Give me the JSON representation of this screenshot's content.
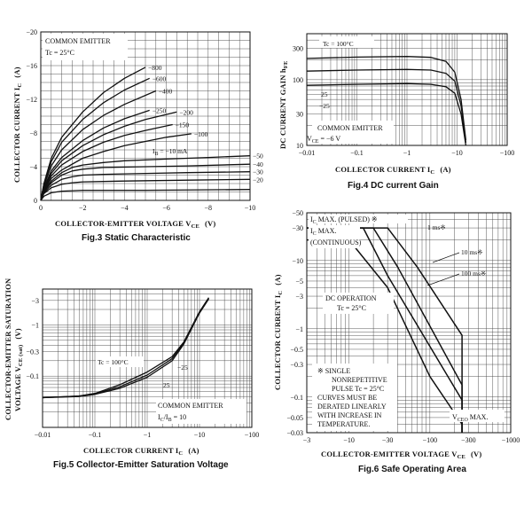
{
  "chart_data": [
    {
      "id": "fig3",
      "type": "line",
      "caption": "Fig.3 Static Characteristic",
      "xlabel": "COLLECTOR-EMITTER VOLTAGE  V",
      "xlabel_sub": "CE",
      "xlabel_unit": "(V)",
      "ylabel": "COLLECTOR CURRENT   I",
      "ylabel_sub": "C",
      "ylabel_unit": "(A)",
      "xlim": [
        0,
        -10
      ],
      "ylim": [
        0,
        -20
      ],
      "x_ticks": [
        "0",
        "−2",
        "−4",
        "−6",
        "−8",
        "−10"
      ],
      "y_ticks": [
        "0",
        "−4",
        "−8",
        "−12",
        "−16",
        "−20"
      ],
      "annotations": [
        "COMMON EMITTER",
        "Tc = 25°C",
        "I",
        "B",
        " = −10 mA"
      ],
      "series": [
        {
          "name": "−800",
          "x": [
            0,
            -0.15,
            -0.5,
            -1,
            -2,
            -3,
            -4,
            -5
          ],
          "y": [
            0,
            -2,
            -5,
            -7.5,
            -10.5,
            -12.8,
            -14.5,
            -15.8
          ]
        },
        {
          "name": "−600",
          "x": [
            0,
            -0.15,
            -0.5,
            -1,
            -2,
            -3,
            -4,
            -5.2
          ],
          "y": [
            0,
            -1.9,
            -4.6,
            -6.9,
            -9.6,
            -11.6,
            -13.1,
            -14.5
          ]
        },
        {
          "name": "−400",
          "x": [
            0,
            -0.15,
            -0.5,
            -1,
            -2,
            -3,
            -4,
            -5.5
          ],
          "y": [
            0,
            -1.7,
            -4.1,
            -6,
            -8.4,
            -10.1,
            -11.4,
            -13
          ]
        },
        {
          "name": "−250",
          "x": [
            0,
            -0.15,
            -0.5,
            -1,
            -2,
            -3,
            -4,
            -5.2
          ],
          "y": [
            0,
            -1.5,
            -3.5,
            -5.1,
            -7.1,
            -8.6,
            -9.7,
            -10.7
          ]
        },
        {
          "name": "−200",
          "x": [
            0,
            -0.15,
            -0.5,
            -1,
            -2,
            -3,
            -4,
            -5,
            -6.5
          ],
          "y": [
            0,
            -1.4,
            -3.2,
            -4.7,
            -6.5,
            -7.8,
            -8.8,
            -9.6,
            -10.5
          ]
        },
        {
          "name": "−150",
          "x": [
            0,
            -0.15,
            -0.5,
            -1,
            -2,
            -3,
            -4,
            -5,
            -6.3
          ],
          "y": [
            0,
            -1.3,
            -2.9,
            -4.2,
            -5.8,
            -6.9,
            -7.7,
            -8.3,
            -9
          ]
        },
        {
          "name": "−100",
          "x": [
            0,
            -0.15,
            -0.5,
            -1,
            -2,
            -3,
            -4,
            -5,
            -6,
            -7.2
          ],
          "y": [
            0,
            -1.2,
            -2.6,
            -3.6,
            -5,
            -5.8,
            -6.5,
            -7,
            -7.5,
            -7.9
          ]
        },
        {
          "name": "−50",
          "x": [
            0,
            -0.15,
            -0.5,
            -1,
            -1.5,
            -2,
            -3,
            -4,
            -6,
            -8,
            -10
          ],
          "y": [
            0,
            -1.1,
            -2.3,
            -3.3,
            -3.9,
            -4.2,
            -4.5,
            -4.7,
            -4.9,
            -5.1,
            -5.3
          ]
        },
        {
          "name": "−40",
          "x": [
            0,
            -0.15,
            -0.5,
            -1,
            -1.5,
            -2,
            -3,
            -5,
            -7,
            -10
          ],
          "y": [
            0,
            -1,
            -2.1,
            -3,
            -3.5,
            -3.7,
            -3.9,
            -4,
            -4.1,
            -4.3
          ]
        },
        {
          "name": "−30",
          "x": [
            0,
            -0.15,
            -0.5,
            -1,
            -1.5,
            -2,
            -3,
            -5,
            -7,
            -10
          ],
          "y": [
            0,
            -0.9,
            -1.8,
            -2.5,
            -2.8,
            -3,
            -3.1,
            -3.2,
            -3.3,
            -3.4
          ]
        },
        {
          "name": "−20",
          "x": [
            0,
            -0.15,
            -0.5,
            -1,
            -1.5,
            -2,
            -4,
            -7,
            -10
          ],
          "y": [
            0,
            -0.8,
            -1.5,
            -1.9,
            -2.1,
            -2.2,
            -2.3,
            -2.4,
            -2.5
          ]
        },
        {
          "name": "−10 mA",
          "x": [
            0,
            -0.15,
            -0.5,
            -1,
            -2,
            -5,
            -10
          ],
          "y": [
            0,
            -0.5,
            -0.9,
            -1.1,
            -1.2,
            -1.2,
            -1.3
          ]
        }
      ],
      "curve_labels": [
        "−800",
        "−600",
        "−400",
        "−250",
        "−200",
        "−150",
        "−100",
        "−50",
        "−40",
        "−30",
        "−20"
      ]
    },
    {
      "id": "fig4",
      "type": "line",
      "caption": "Fig.4  DC current Gain",
      "xlabel": "COLLECTOR CURRENT   I",
      "xlabel_sub": "C",
      "xlabel_unit": "(A)",
      "ylabel": "DC CURRENT GAIN   h",
      "ylabel_sub": "FE",
      "log_x": true,
      "log_y": true,
      "xlim": [
        -0.01,
        -100
      ],
      "ylim": [
        10,
        500
      ],
      "x_ticks": [
        "−0.01",
        "−0.1",
        "−1",
        "−10",
        "−100"
      ],
      "y_ticks": [
        "300",
        "100",
        "30",
        "10"
      ],
      "annotations": [
        "COMMON EMITTER",
        "V",
        "CE",
        " = −6 V"
      ],
      "series": [
        {
          "name": "Tc = 100°C",
          "x": [
            -0.01,
            -0.1,
            -1,
            -3,
            -6,
            -9,
            -12,
            -15
          ],
          "y": [
            210,
            220,
            225,
            218,
            190,
            130,
            50,
            12
          ]
        },
        {
          "name": "25",
          "x": [
            -0.01,
            -0.1,
            -1,
            -3,
            -6,
            -9,
            -12,
            -15
          ],
          "y": [
            135,
            140,
            143,
            140,
            125,
            95,
            40,
            11
          ]
        },
        {
          "name": "−25",
          "x": [
            -0.01,
            -0.1,
            -1,
            -3,
            -6,
            -9,
            -12,
            -15
          ],
          "y": [
            82,
            85,
            87,
            85,
            78,
            62,
            30,
            10
          ]
        }
      ],
      "curve_labels": [
        "Tc = 100°C",
        "25",
        "−25"
      ]
    },
    {
      "id": "fig5",
      "type": "line",
      "caption": "Fig.5  Collector-Emitter Saturation Voltage",
      "xlabel": "COLLECTOR CURRENT   I",
      "xlabel_sub": "C",
      "xlabel_unit": "(A)",
      "ylabel": "COLLECTOR-EMITTER SATURATION",
      "ylabel2": "VOLTAGE   V",
      "ylabel2_sub": "CE (sat)",
      "ylabel2_unit": "(V)",
      "log_x": true,
      "log_y": true,
      "xlim": [
        -0.01,
        -100
      ],
      "ylim": [
        -0.01,
        -5
      ],
      "x_ticks": [
        "−0.01",
        "−0.1",
        "−1",
        "−10",
        "−100"
      ],
      "y_ticks": [
        "−3",
        "−1",
        "−0.3",
        "−0.1"
      ],
      "annotations": [
        "COMMON EMITTER",
        "I",
        "C",
        "/I",
        "B",
        " = 10"
      ],
      "series": [
        {
          "name": "Tc = 100°C",
          "x": [
            -0.01,
            -0.05,
            -0.1,
            -0.3,
            -1,
            -3,
            -5,
            -10,
            -15
          ],
          "y": [
            -0.038,
            -0.041,
            -0.046,
            -0.068,
            -0.12,
            -0.24,
            -0.46,
            -1.8,
            -3.4
          ]
        },
        {
          "name": "25",
          "x": [
            -0.01,
            -0.05,
            -0.1,
            -0.3,
            -1,
            -3,
            -5,
            -10,
            -15
          ],
          "y": [
            -0.038,
            -0.041,
            -0.045,
            -0.062,
            -0.105,
            -0.22,
            -0.44,
            -1.75,
            -3.3
          ]
        },
        {
          "name": "−25",
          "x": [
            -0.01,
            -0.05,
            -0.1,
            -0.3,
            -1,
            -3,
            -5,
            -10,
            -15
          ],
          "y": [
            -0.038,
            -0.04,
            -0.044,
            -0.058,
            -0.095,
            -0.2,
            -0.42,
            -1.7,
            -3.2
          ]
        }
      ],
      "curve_labels": [
        "Tc = 100°C",
        "−25",
        "25"
      ]
    },
    {
      "id": "fig6",
      "type": "line",
      "caption": "Fig.6  Safe Operating Area",
      "xlabel": "COLLECTOR-EMITTER VOLTAGE  V",
      "xlabel_sub": "CE",
      "xlabel_unit": "(V)",
      "ylabel": "COLLECTOR CURRENT   I",
      "ylabel_sub": "C",
      "ylabel_unit": "(A)",
      "log_x": true,
      "log_y": true,
      "xlim": [
        -3,
        -1000
      ],
      "ylim": [
        -0.03,
        -50
      ],
      "x_ticks": [
        "−3",
        "−10",
        "−30",
        "−100",
        "−300",
        "−1000"
      ],
      "y_ticks": [
        "−50",
        "−30",
        "−10",
        "−5",
        "−3",
        "−1",
        "−0.5",
        "−0.3",
        "−0.1",
        "−0.05",
        "−0.03"
      ],
      "annotations": [
        "I",
        "C",
        " MAX. (PULSED) ※",
        "I",
        "C",
        " MAX.",
        "(CONTINUOUS)",
        "DC OPERATION",
        "Tc = 25°C",
        "※  SINGLE",
        "NONREPETITIVE",
        "PULSE Tc = 25°C",
        "CURVES MUST BE",
        "DERATED LINEARLY",
        "WITH INCREASE IN",
        "TEMPERATURE.",
        "V",
        "CEO",
        " MAX."
      ],
      "series": [
        {
          "name": "1 ms※",
          "x": [
            -3,
            -30,
            -70,
            -250,
            -250
          ],
          "y": [
            -30,
            -30,
            -8,
            -0.8,
            -0.03
          ]
        },
        {
          "name": "10 ms※",
          "x": [
            -3,
            -20,
            -40,
            -250,
            -250
          ],
          "y": [
            -30,
            -30,
            -8,
            -0.15,
            -0.03
          ]
        },
        {
          "name": "100 ms※",
          "x": [
            -3,
            -15,
            -30,
            -250,
            -250
          ],
          "y": [
            -30,
            -30,
            -6,
            -0.09,
            -0.03
          ]
        },
        {
          "name": "DC OPERATION",
          "x": [
            -3,
            -10,
            -30,
            -100,
            -250,
            -250
          ],
          "y": [
            -20,
            -20,
            -4,
            -0.2,
            -0.04,
            -0.03
          ]
        }
      ],
      "curve_labels": [
        "1 ms※",
        "10 ms※",
        "100 ms※"
      ]
    }
  ]
}
